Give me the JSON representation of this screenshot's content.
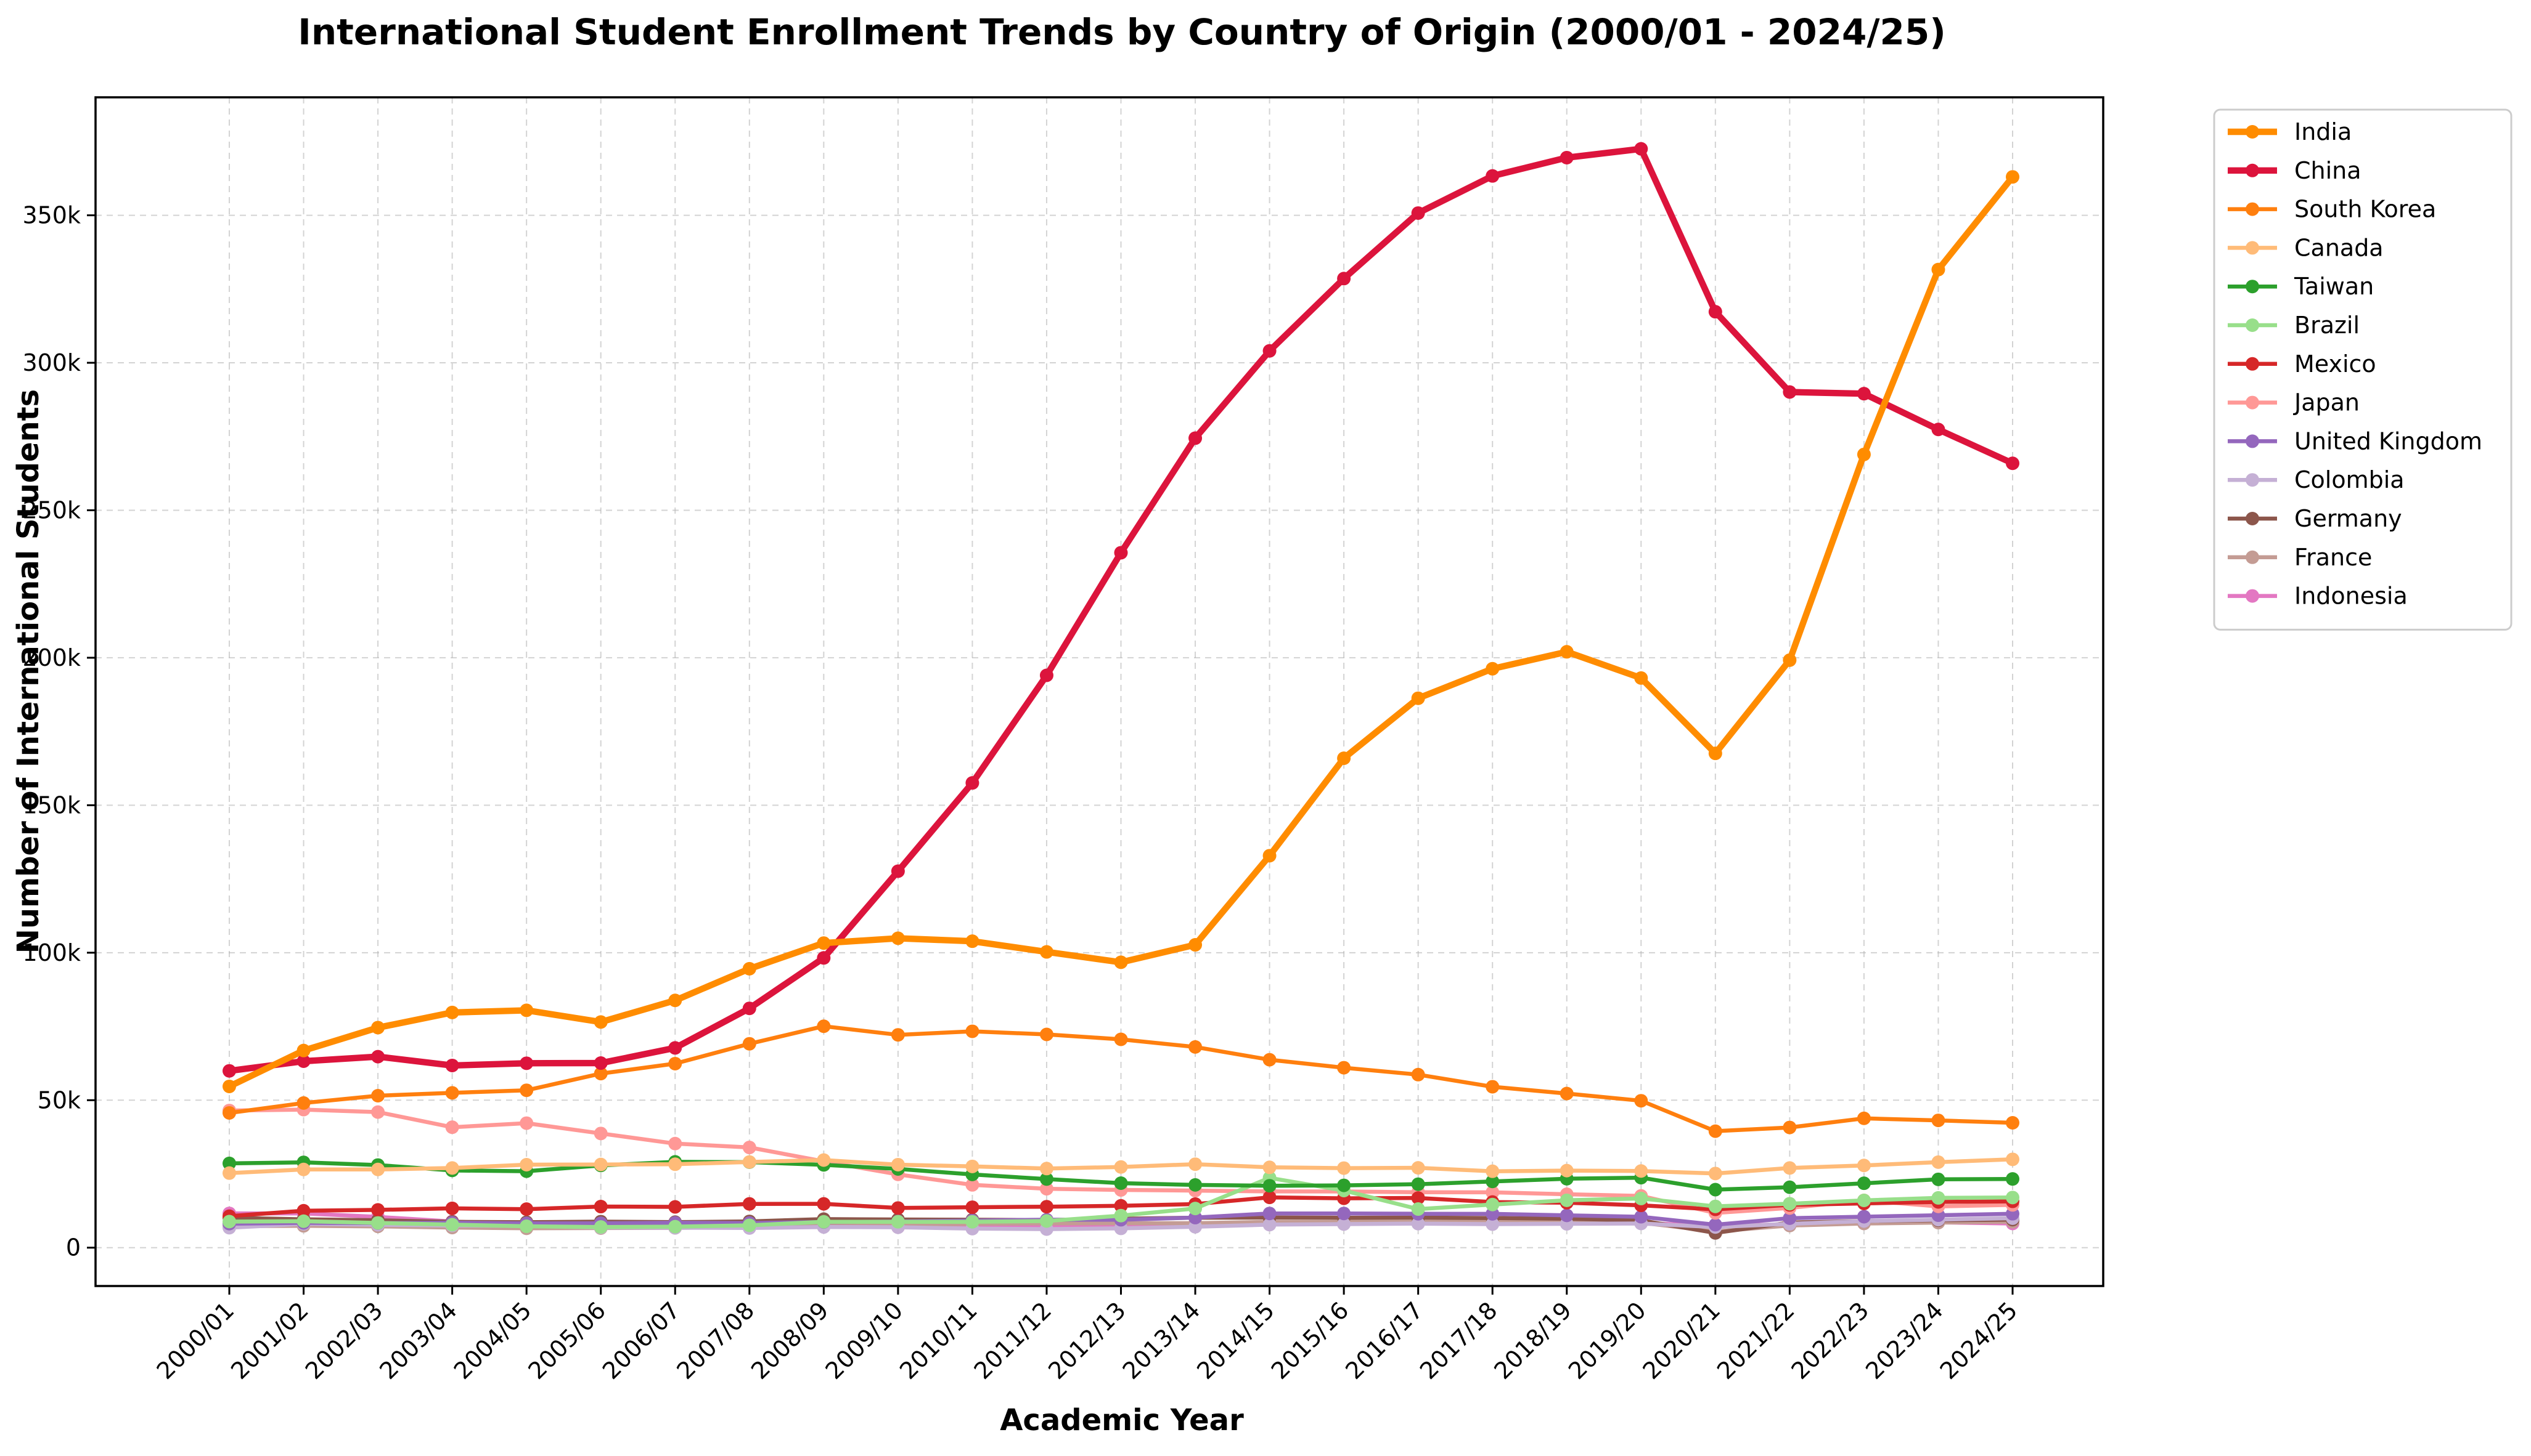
{
  "chart_data": {
    "type": "line",
    "title": "International Student Enrollment Trends by Country of Origin (2000/01 - 2024/25)",
    "xlabel": "Academic Year",
    "ylabel": "Number of International Students",
    "x": [
      "2000/01",
      "2001/02",
      "2002/03",
      "2003/04",
      "2004/05",
      "2005/06",
      "2006/07",
      "2007/08",
      "2008/09",
      "2009/10",
      "2010/11",
      "2011/12",
      "2012/13",
      "2013/14",
      "2014/15",
      "2015/16",
      "2016/17",
      "2017/18",
      "2018/19",
      "2019/20",
      "2020/21",
      "2021/22",
      "2022/23",
      "2023/24",
      "2024/25"
    ],
    "ylim": [
      -13000,
      390000
    ],
    "yticks": [
      0,
      50000,
      100000,
      150000,
      200000,
      250000,
      300000,
      350000
    ],
    "ytick_labels": [
      "0",
      "50k",
      "100k",
      "150k",
      "200k",
      "250k",
      "300k",
      "350k"
    ],
    "grid": true,
    "legend_position": "outside-right",
    "series": [
      {
        "name": "India",
        "color": "#ff8c00",
        "width": 4,
        "values": [
          54664,
          66836,
          74603,
          79736,
          80466,
          76503,
          83833,
          94563,
          103260,
          104897,
          103895,
          100270,
          96754,
          102673,
          132888,
          165918,
          186267,
          196271,
          202014,
          193124,
          167582,
          199182,
          268923,
          331602,
          363019
        ]
      },
      {
        "name": "China",
        "color": "#dc143c",
        "width": 4,
        "values": [
          59939,
          63211,
          64757,
          61765,
          62523,
          62582,
          67723,
          81127,
          98235,
          127628,
          157558,
          194029,
          235597,
          274439,
          304040,
          328547,
          350755,
          363341,
          369548,
          372532,
          317299,
          290086,
          289526,
          277398,
          265919
        ]
      },
      {
        "name": "South Korea",
        "color": "#ff7f0e",
        "width": 2.5,
        "values": [
          45685,
          49046,
          51519,
          52484,
          53358,
          59022,
          62392,
          69124,
          75065,
          72153,
          73351,
          72295,
          70627,
          68047,
          63710,
          61007,
          58663,
          54555,
          52250,
          49809,
          39491,
          40755,
          43847,
          43149,
          42334
        ]
      },
      {
        "name": "Canada",
        "color": "#ffbb78",
        "width": 2.5,
        "values": [
          25279,
          26514,
          26513,
          27017,
          28140,
          28202,
          28280,
          29051,
          29697,
          28145,
          27546,
          26821,
          27357,
          28304,
          27240,
          26973,
          27065,
          25909,
          26122,
          25992,
          25143,
          27013,
          27876,
          28998,
          29944
        ]
      },
      {
        "name": "Taiwan",
        "color": "#2ca02c",
        "width": 2.5,
        "values": [
          28566,
          28930,
          28017,
          26178,
          25914,
          27876,
          29094,
          29001,
          28065,
          26685,
          24818,
          23250,
          21867,
          21266,
          20993,
          21127,
          21516,
          22454,
          23369,
          23724,
          19673,
          20487,
          21834,
          23157,
          23298
        ]
      },
      {
        "name": "Brazil",
        "color": "#98df8a",
        "width": 2.5,
        "values": [
          8846,
          8972,
          8388,
          7799,
          7244,
          7009,
          7126,
          7578,
          8767,
          8786,
          8777,
          9029,
          10868,
          13286,
          23675,
          19370,
          13089,
          14620,
          16059,
          16671,
          14000,
          14897,
          16025,
          16877,
          17000
        ]
      },
      {
        "name": "Mexico",
        "color": "#d62728",
        "width": 2.5,
        "values": [
          10670,
          12518,
          12801,
          13329,
          13063,
          13931,
          13826,
          14837,
          14850,
          13450,
          13713,
          13893,
          14199,
          14779,
          17052,
          16733,
          16835,
          15468,
          15229,
          14348,
          12986,
          14500,
          15000,
          15500,
          15700
        ]
      },
      {
        "name": "Japan",
        "color": "#ff9896",
        "width": 2.5,
        "values": [
          46497,
          46810,
          45960,
          40835,
          42215,
          38712,
          35282,
          33974,
          29264,
          24842,
          21290,
          19966,
          19568,
          19334,
          19064,
          19060,
          18780,
          18753,
          18105,
          17554,
          11785,
          13449,
          16054,
          14000,
          14500
        ]
      },
      {
        "name": "United Kingdom",
        "color": "#9467bd",
        "width": 2.5,
        "values": [
          8139,
          8414,
          8326,
          8439,
          8236,
          8274,
          8438,
          8367,
          8701,
          8861,
          9186,
          9458,
          9467,
          10191,
          11599,
          11599,
          11489,
          11460,
          10946,
          10479,
          7777,
          10000,
          10500,
          11000,
          11500
        ]
      },
      {
        "name": "Colombia",
        "color": "#c5b0d5",
        "width": 2.5,
        "values": [
          6765,
          8068,
          7771,
          7533,
          7334,
          6835,
          6750,
          6662,
          7013,
          6920,
          6456,
          6295,
          6542,
          7083,
          7815,
          7982,
          8145,
          7976,
          8083,
          8200,
          7000,
          8100,
          9000,
          9500,
          10000
        ]
      },
      {
        "name": "Germany",
        "color": "#8c564b",
        "width": 2.5,
        "values": [
          10128,
          9613,
          9302,
          8745,
          8640,
          8829,
          8656,
          8907,
          9679,
          9548,
          9458,
          9347,
          9819,
          10160,
          10193,
          10145,
          10169,
          10042,
          9816,
          9242,
          5000,
          8500,
          9000,
          9300,
          9500
        ]
      },
      {
        "name": "France",
        "color": "#c49c94",
        "width": 2.5,
        "values": [
          7273,
          7401,
          7223,
          6818,
          6555,
          6640,
          6704,
          7050,
          7716,
          7716,
          8098,
          8232,
          8297,
          8302,
          8743,
          8764,
          8814,
          8802,
          8646,
          8471,
          5500,
          7500,
          8200,
          8500,
          8800
        ]
      },
      {
        "name": "Indonesia",
        "color": "#e377c2",
        "width": 2.5,
        "values": [
          11625,
          11614,
          10432,
          8880,
          7760,
          7575,
          7338,
          7692,
          7509,
          6943,
          6942,
          7131,
          7670,
          8003,
          8348,
          8688,
          8776,
          8650,
          8356,
          8300,
          7500,
          7900,
          8300,
          8600,
          8200
        ]
      }
    ]
  }
}
